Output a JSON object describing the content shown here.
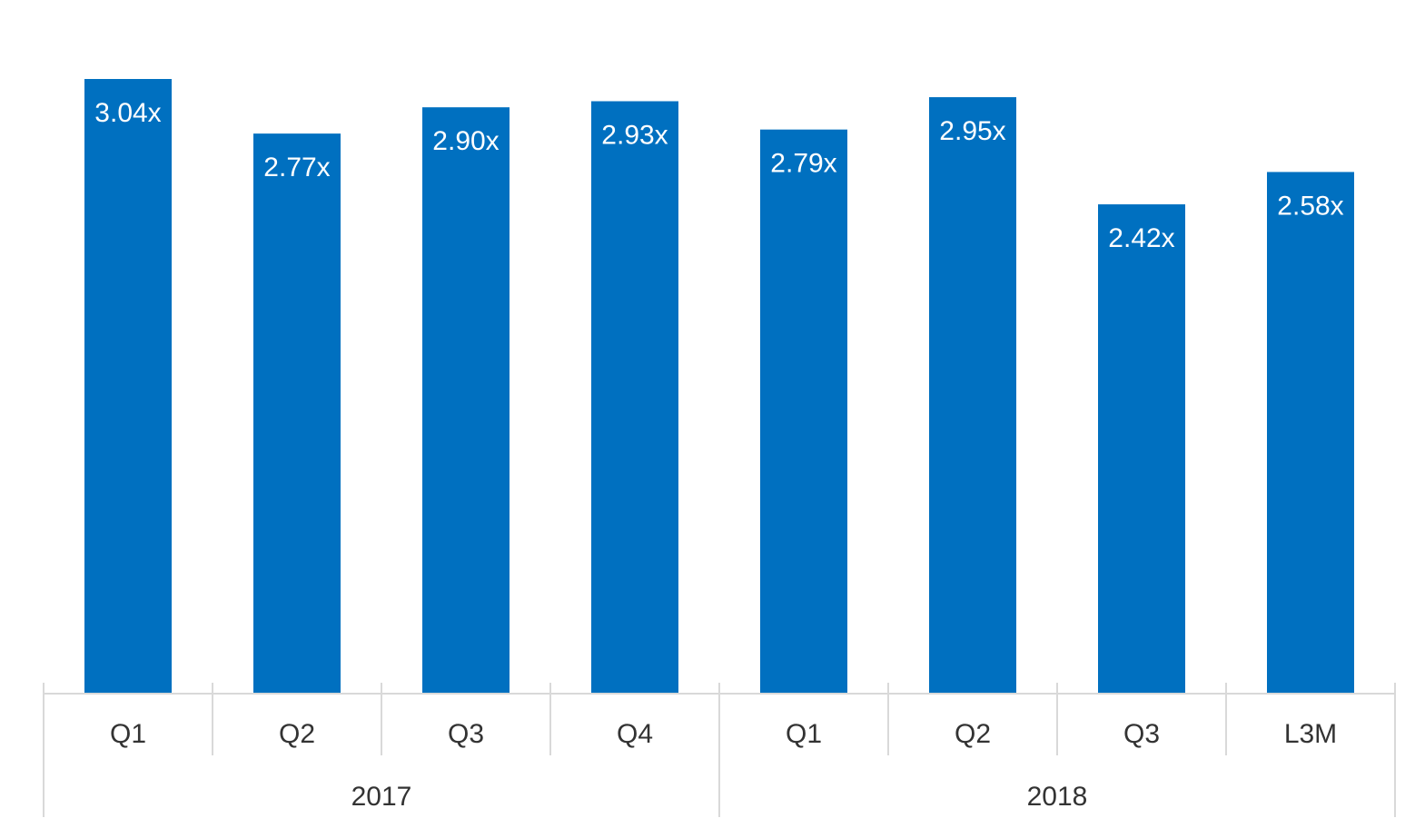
{
  "chart_data": {
    "type": "bar",
    "title": "",
    "xlabel": "",
    "ylabel": "",
    "ylim": [
      0,
      3.04
    ],
    "grid": false,
    "legend": "none",
    "categories": [
      "Q1",
      "Q2",
      "Q3",
      "Q4",
      "Q1",
      "Q2",
      "Q3",
      "L3M"
    ],
    "groups": [
      {
        "label": "2017",
        "span": 4
      },
      {
        "label": "2018",
        "span": 4
      }
    ],
    "values": [
      3.04,
      2.77,
      2.9,
      2.93,
      2.79,
      2.95,
      2.42,
      2.58
    ],
    "data_labels": [
      "3.04x",
      "2.77x",
      "2.90x",
      "2.93x",
      "2.79x",
      "2.95x",
      "2.42x",
      "2.58x"
    ],
    "colors": {
      "bar": "#0070C0",
      "axis": "#D9D9D9",
      "text": "#333333",
      "bar_label": "#FFFFFF"
    }
  }
}
